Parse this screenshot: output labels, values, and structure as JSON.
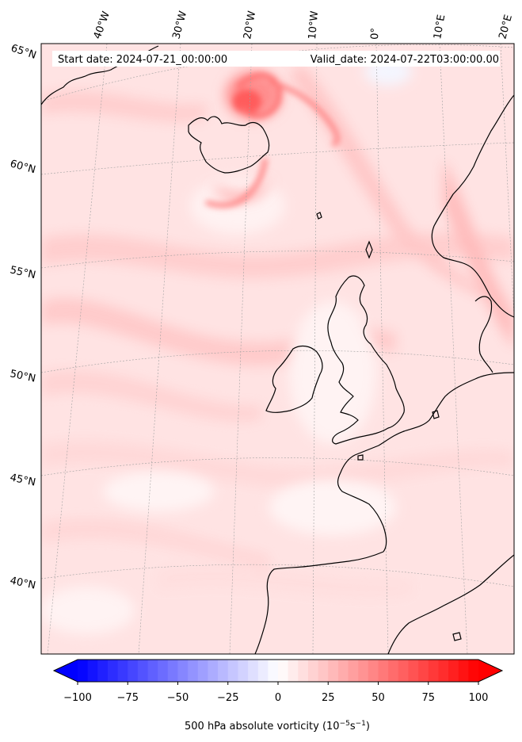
{
  "header": {
    "start_date": "Start date: 2024-07-21_00:00:00",
    "valid_date": "Valid_date: 2024-07-22T03:00:00.00"
  },
  "map": {
    "projection": "conic",
    "lon_labels": [
      "40°W",
      "30°W",
      "20°W",
      "10°W",
      "0°",
      "10°E",
      "20°E"
    ],
    "lat_labels": [
      "65°N",
      "60°N",
      "55°N",
      "50°N",
      "45°N",
      "40°N"
    ],
    "field": "500 hPa absolute vorticity",
    "colors": {
      "background": "#ffe4e4",
      "weak": "#ffd0d0",
      "strong": "#ff5a5a",
      "near_zero": "#fff5f5",
      "coast": "#000000",
      "grid": "#9a9a9a"
    }
  },
  "colorbar": {
    "ticks": [
      "−100",
      "−75",
      "−50",
      "−25",
      "0",
      "25",
      "50",
      "75",
      "100"
    ],
    "tick_values": [
      -100,
      -75,
      -50,
      -25,
      0,
      25,
      50,
      75,
      100
    ],
    "range": [
      -100,
      100
    ],
    "colormap": "bwr",
    "label_main": "500 hPa absolute vorticity (10",
    "label_exp1": "−5",
    "label_mid": "s",
    "label_exp2": "−1",
    "label_end": ")"
  }
}
